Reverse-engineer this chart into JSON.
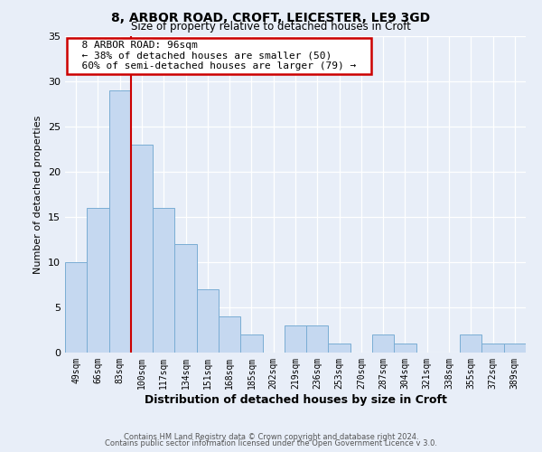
{
  "title": "8, ARBOR ROAD, CROFT, LEICESTER, LE9 3GD",
  "subtitle": "Size of property relative to detached houses in Croft",
  "xlabel": "Distribution of detached houses by size in Croft",
  "ylabel": "Number of detached properties",
  "footer_line1": "Contains HM Land Registry data © Crown copyright and database right 2024.",
  "footer_line2": "Contains public sector information licensed under the Open Government Licence v 3.0.",
  "bin_labels": [
    "49sqm",
    "66sqm",
    "83sqm",
    "100sqm",
    "117sqm",
    "134sqm",
    "151sqm",
    "168sqm",
    "185sqm",
    "202sqm",
    "219sqm",
    "236sqm",
    "253sqm",
    "270sqm",
    "287sqm",
    "304sqm",
    "321sqm",
    "338sqm",
    "355sqm",
    "372sqm",
    "389sqm"
  ],
  "bar_values": [
    10,
    16,
    29,
    23,
    16,
    12,
    7,
    4,
    2,
    0,
    3,
    3,
    1,
    0,
    2,
    1,
    0,
    0,
    2,
    1,
    1
  ],
  "bar_color": "#c5d8f0",
  "bar_edge_color": "#7aadd4",
  "vline_color": "#cc0000",
  "annotation_title": "8 ARBOR ROAD: 96sqm",
  "annotation_line2": "← 38% of detached houses are smaller (50)",
  "annotation_line3": "60% of semi-detached houses are larger (79) →",
  "annotation_box_color": "white",
  "annotation_box_edge": "#cc0000",
  "ylim": [
    0,
    35
  ],
  "yticks": [
    0,
    5,
    10,
    15,
    20,
    25,
    30,
    35
  ],
  "background_color": "#e8eef8",
  "grid_color": "#ffffff",
  "title_fontsize": 10,
  "subtitle_fontsize": 8.5
}
